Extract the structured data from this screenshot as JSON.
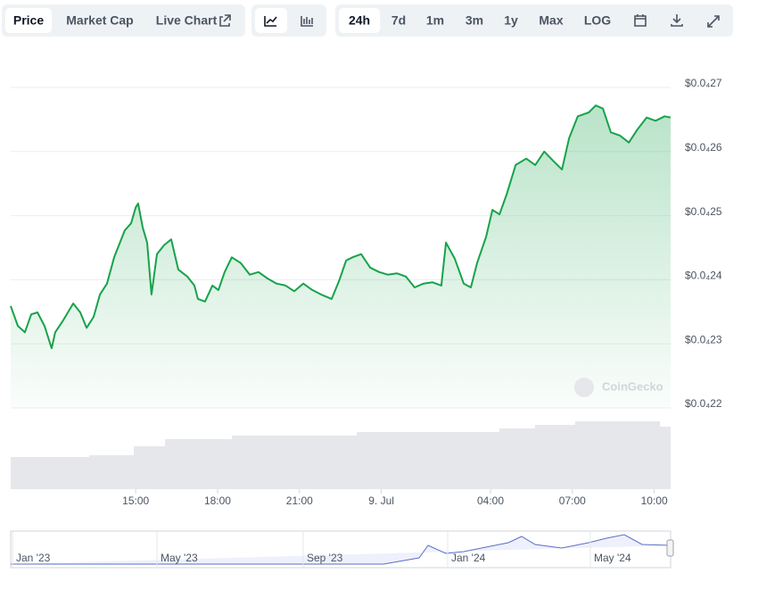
{
  "toolbar": {
    "tabs": [
      "Price",
      "Market Cap",
      "Live Chart"
    ],
    "ranges": [
      "24h",
      "7d",
      "1m",
      "3m",
      "1y",
      "Max",
      "LOG"
    ]
  },
  "watermark": "CoinGecko",
  "chart_data": {
    "type": "area",
    "color": "#16a34a",
    "grid": true,
    "x": [
      10.42,
      10.68,
      10.94,
      11.17,
      11.4,
      11.66,
      11.92,
      12.05,
      12.32,
      12.71,
      12.97,
      13.2,
      13.46,
      13.69,
      13.95,
      14.21,
      14.6,
      14.83,
      15.0,
      15.09,
      15.26,
      15.42,
      15.58,
      15.78,
      16.04,
      16.3,
      16.56,
      16.89,
      17.15,
      17.28,
      17.54,
      17.81,
      18.03,
      18.26,
      18.52,
      18.85,
      19.18,
      19.5,
      19.83,
      20.16,
      20.49,
      20.81,
      21.14,
      21.47,
      21.79,
      22.18,
      22.45,
      22.71,
      22.94,
      23.26,
      23.59,
      23.92,
      24.24,
      24.57,
      24.9,
      25.22,
      25.55,
      25.88,
      26.2,
      26.37,
      26.69,
      27.02,
      27.28,
      27.51,
      27.84,
      28.07,
      28.33,
      28.59,
      28.92,
      29.31,
      29.64,
      29.97,
      30.29,
      30.62,
      30.88,
      31.2,
      31.6,
      31.86,
      32.12,
      32.41,
      32.74,
      33.07,
      33.39,
      33.72,
      34.05,
      34.38,
      34.6
    ],
    "values": [
      2.359e-05,
      2.328e-05,
      2.318e-05,
      2.346e-05,
      2.349e-05,
      2.328e-05,
      2.293e-05,
      2.318e-05,
      2.335e-05,
      2.363e-05,
      2.349e-05,
      2.325e-05,
      2.342e-05,
      2.377e-05,
      2.394e-05,
      2.435e-05,
      2.477e-05,
      2.488e-05,
      2.513e-05,
      2.519e-05,
      2.481e-05,
      2.458e-05,
      2.377e-05,
      2.44e-05,
      2.454e-05,
      2.463e-05,
      2.416e-05,
      2.405e-05,
      2.391e-05,
      2.37e-05,
      2.366e-05,
      2.391e-05,
      2.384e-05,
      2.412e-05,
      2.435e-05,
      2.426e-05,
      2.408e-05,
      2.412e-05,
      2.402e-05,
      2.394e-05,
      2.391e-05,
      2.382e-05,
      2.394e-05,
      2.384e-05,
      2.377e-05,
      2.37e-05,
      2.398e-05,
      2.43e-05,
      2.435e-05,
      2.44e-05,
      2.419e-05,
      2.412e-05,
      2.408e-05,
      2.41e-05,
      2.405e-05,
      2.388e-05,
      2.394e-05,
      2.396e-05,
      2.391e-05,
      2.458e-05,
      2.433e-05,
      2.394e-05,
      2.388e-05,
      2.426e-05,
      2.467e-05,
      2.509e-05,
      2.502e-05,
      2.533e-05,
      2.579e-05,
      2.589e-05,
      2.579e-05,
      2.6e-05,
      2.586e-05,
      2.572e-05,
      2.621e-05,
      2.655e-05,
      2.661e-05,
      2.672e-05,
      2.667e-05,
      2.63e-05,
      2.625e-05,
      2.614e-05,
      2.635e-05,
      2.653e-05,
      2.648e-05,
      2.655e-05,
      2.653e-05
    ],
    "xlim": [
      10.42,
      34.6
    ],
    "xticks": [
      {
        "value": 15,
        "label": "15:00"
      },
      {
        "value": 18,
        "label": "18:00"
      },
      {
        "value": 21,
        "label": "21:00"
      },
      {
        "value": 24,
        "label": "9. Jul"
      },
      {
        "value": 28,
        "label": "04:00"
      },
      {
        "value": 31,
        "label": "07:00"
      },
      {
        "value": 34,
        "label": "10:00"
      }
    ],
    "ylim": [
      2.2e-05,
      2.7e-05
    ],
    "yticks": [
      {
        "value": 2.2e-05,
        "label": "$0.0₄22"
      },
      {
        "value": 2.3e-05,
        "label": "$0.0₄23"
      },
      {
        "value": 2.4e-05,
        "label": "$0.0₄24"
      },
      {
        "value": 2.5e-05,
        "label": "$0.0₄25"
      },
      {
        "value": 2.6e-05,
        "label": "$0.0₄26"
      },
      {
        "value": 2.7e-05,
        "label": "$0.0₄27"
      }
    ]
  },
  "navigator": {
    "labels": [
      "Jan '23",
      "May '23",
      "Sep '23",
      "Jan '24",
      "May '24"
    ]
  }
}
